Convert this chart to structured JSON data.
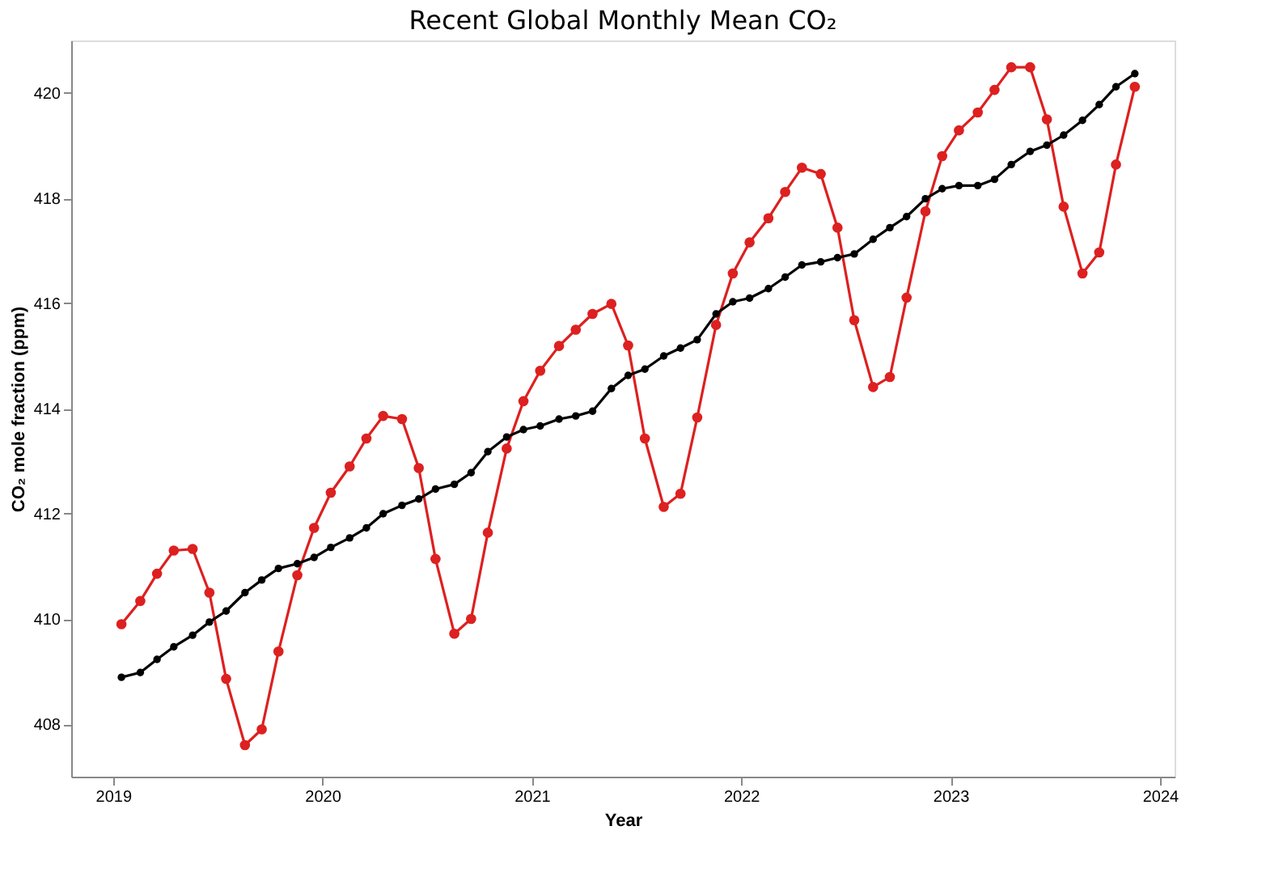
{
  "chart_data": {
    "type": "line",
    "title": "Recent Global Monthly Mean CO₂",
    "xlabel": "Year",
    "ylabel": "CO₂ mole fraction (ppm)",
    "x": [
      2019.04,
      2019.13,
      2019.21,
      2019.29,
      2019.38,
      2019.46,
      2019.54,
      2019.63,
      2019.71,
      2019.79,
      2019.88,
      2019.96,
      2020.04,
      2020.13,
      2020.21,
      2020.29,
      2020.38,
      2020.46,
      2020.54,
      2020.63,
      2020.71,
      2020.79,
      2020.88,
      2020.96,
      2021.04,
      2021.13,
      2021.21,
      2021.29,
      2021.38,
      2021.46,
      2021.54,
      2021.63,
      2021.71,
      2021.79,
      2021.88,
      2021.96,
      2022.04,
      2022.13,
      2022.21,
      2022.29,
      2022.38,
      2022.46,
      2022.54,
      2022.63,
      2022.71,
      2022.79,
      2022.88,
      2022.96,
      2023.04,
      2023.13,
      2023.21,
      2023.29,
      2023.38,
      2023.46,
      2023.54,
      2023.63,
      2023.71,
      2023.79,
      2023.88
    ],
    "series": [
      {
        "color": "#dd2020",
        "values": [
          409.9,
          410.34,
          410.86,
          411.3,
          411.33,
          410.5,
          408.86,
          407.6,
          407.9,
          409.38,
          410.83,
          411.73,
          412.4,
          412.9,
          413.43,
          413.86,
          413.8,
          412.87,
          411.14,
          409.72,
          410.0,
          411.64,
          413.24,
          414.14,
          414.72,
          415.19,
          415.5,
          415.8,
          415.99,
          415.2,
          413.43,
          412.13,
          412.38,
          413.83,
          415.59,
          416.57,
          417.16,
          417.62,
          418.12,
          418.58,
          418.46,
          417.44,
          415.68,
          414.41,
          414.6,
          416.11,
          417.75,
          418.8,
          419.29,
          419.63,
          420.06,
          420.49,
          420.49,
          419.5,
          417.84,
          416.57,
          416.97,
          418.64,
          420.12
        ]
      },
      {
        "color": "#000000",
        "values": [
          408.89,
          408.98,
          409.23,
          409.47,
          409.69,
          409.94,
          410.15,
          410.5,
          410.74,
          410.96,
          411.05,
          411.17,
          411.36,
          411.54,
          411.73,
          412.0,
          412.16,
          412.28,
          412.47,
          412.56,
          412.78,
          413.18,
          413.46,
          413.6,
          413.67,
          413.8,
          413.86,
          413.95,
          414.38,
          414.63,
          414.75,
          415.0,
          415.15,
          415.31,
          415.8,
          416.03,
          416.1,
          416.28,
          416.5,
          416.73,
          416.79,
          416.87,
          416.94,
          417.22,
          417.44,
          417.65,
          417.99,
          418.18,
          418.24,
          418.24,
          418.36,
          418.64,
          418.89,
          419.01,
          419.2,
          419.48,
          419.78,
          420.12,
          420.37
        ]
      }
    ],
    "xlim": [
      2018.8,
      2024.07
    ],
    "ylim": [
      407,
      421
    ],
    "xticks": [
      2019,
      2020,
      2021,
      2022,
      2023,
      2024
    ],
    "yticks": [
      408,
      410,
      412,
      414,
      416,
      418,
      420
    ],
    "grid": false,
    "marker": "circle",
    "line_style": "solid"
  }
}
